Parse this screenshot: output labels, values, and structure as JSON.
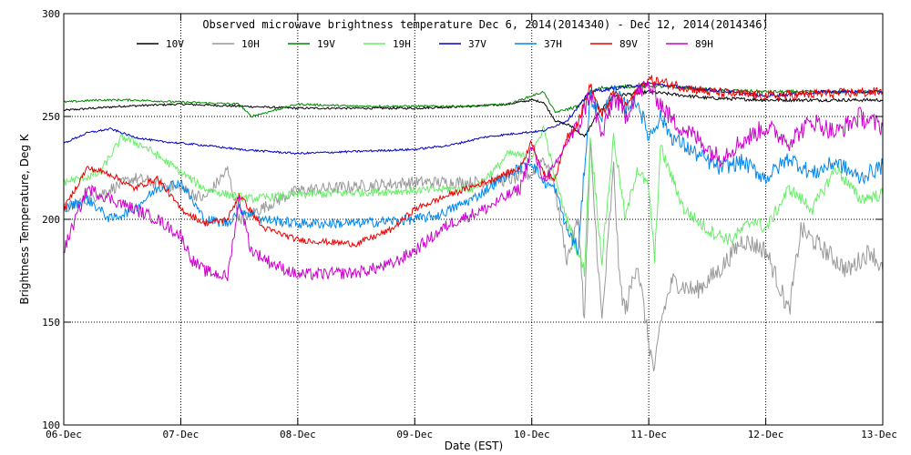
{
  "chart_data": {
    "type": "line",
    "title": "Observed microwave brightness temperature Dec  6, 2014(2014340) - Dec 12, 2014(2014346)",
    "xlabel": "Date (EST)",
    "ylabel": "Brightness Temperature, Deg K",
    "ylim": [
      100,
      300
    ],
    "xlim": [
      0,
      7
    ],
    "grid": true,
    "legend_position": "top",
    "x_ticks": [
      0,
      1,
      2,
      3,
      4,
      5,
      6,
      7
    ],
    "x_tick_labels": [
      "06-Dec",
      "07-Dec",
      "08-Dec",
      "09-Dec",
      "10-Dec",
      "11-Dec",
      "12-Dec",
      "13-Dec"
    ],
    "y_ticks": [
      100,
      150,
      200,
      250,
      300
    ],
    "y_tick_labels": [
      "100",
      "150",
      "200",
      "250",
      "300"
    ],
    "x_unit": "days since 06-Dec 00:00 EST",
    "series": [
      {
        "name": "10V",
        "color": "#000000",
        "x": [
          0,
          0.5,
          1,
          1.5,
          2,
          2.5,
          3,
          3.5,
          3.8,
          4.0,
          4.1,
          4.2,
          4.35,
          4.45,
          4.55,
          4.7,
          5.0,
          5.5,
          6,
          6.5,
          7
        ],
        "y": [
          253,
          255,
          256,
          255,
          254,
          254,
          254,
          255,
          256,
          258,
          257,
          248,
          245,
          240,
          250,
          260,
          262,
          259,
          258,
          258,
          258
        ]
      },
      {
        "name": "10H",
        "color": "#999999",
        "x": [
          0,
          0.3,
          0.6,
          1.0,
          1.2,
          1.4,
          1.5,
          2.0,
          2.5,
          3.0,
          3.5,
          3.8,
          4.0,
          4.1,
          4.2,
          4.3,
          4.4,
          4.45,
          4.5,
          4.6,
          4.7,
          4.75,
          4.8,
          4.9,
          5.0,
          5.05,
          5.1,
          5.2,
          5.4,
          5.6,
          5.8,
          6.0,
          6.1,
          6.2,
          6.3,
          6.5,
          6.7,
          6.9,
          7.0
        ],
        "y": [
          205,
          212,
          220,
          215,
          210,
          224,
          200,
          214,
          216,
          218,
          218,
          219,
          222,
          230,
          215,
          180,
          200,
          150,
          235,
          150,
          225,
          170,
          155,
          180,
          140,
          125,
          150,
          170,
          165,
          175,
          190,
          185,
          170,
          155,
          195,
          185,
          175,
          185,
          175
        ]
      },
      {
        "name": "19V",
        "color": "#008800",
        "x": [
          0,
          0.3,
          0.6,
          1.0,
          1.5,
          1.6,
          2.0,
          2.5,
          3.0,
          3.5,
          3.8,
          4.0,
          4.1,
          4.2,
          4.4,
          4.5,
          4.6,
          5.0,
          5.5,
          6.0,
          6.5,
          7.0
        ],
        "y": [
          257,
          258,
          258,
          257,
          256,
          250,
          256,
          255,
          255,
          255,
          256,
          260,
          262,
          252,
          255,
          262,
          264,
          265,
          263,
          262,
          262,
          262
        ]
      },
      {
        "name": "19H",
        "color": "#66ee66",
        "x": [
          0,
          0.3,
          0.5,
          0.7,
          1.0,
          1.2,
          1.4,
          1.6,
          2.0,
          2.5,
          3.0,
          3.5,
          3.7,
          3.8,
          4.0,
          4.1,
          4.2,
          4.3,
          4.45,
          4.5,
          4.6,
          4.7,
          4.8,
          4.9,
          5.0,
          5.05,
          5.1,
          5.3,
          5.5,
          5.7,
          5.9,
          6.0,
          6.2,
          6.4,
          6.6,
          6.8,
          7.0
        ],
        "y": [
          218,
          222,
          240,
          235,
          223,
          215,
          212,
          210,
          212,
          213,
          214,
          215,
          225,
          232,
          230,
          245,
          220,
          200,
          175,
          240,
          180,
          240,
          200,
          225,
          215,
          180,
          235,
          205,
          195,
          190,
          200,
          195,
          215,
          205,
          225,
          210,
          212
        ]
      },
      {
        "name": "37V",
        "color": "#0000cc",
        "x": [
          0,
          0.2,
          0.4,
          0.6,
          0.8,
          1.0,
          1.2,
          1.5,
          2.0,
          2.5,
          3.0,
          3.3,
          3.6,
          3.9,
          4.1,
          4.3,
          4.5,
          5.0,
          5.5,
          6.0,
          6.5,
          7.0
        ],
        "y": [
          237,
          242,
          244,
          240,
          238,
          237,
          236,
          234,
          232,
          233,
          234,
          236,
          240,
          242,
          243,
          248,
          262,
          266,
          263,
          260,
          262,
          262
        ]
      },
      {
        "name": "37H",
        "color": "#0088ee",
        "x": [
          0,
          0.2,
          0.4,
          0.6,
          0.8,
          1.0,
          1.2,
          1.4,
          1.5,
          1.7,
          2.0,
          2.5,
          3.0,
          3.2,
          3.5,
          3.8,
          4.0,
          4.1,
          4.2,
          4.3,
          4.4,
          4.45,
          4.5,
          4.6,
          4.7,
          4.8,
          4.9,
          5.0,
          5.1,
          5.2,
          5.4,
          5.6,
          5.8,
          6.0,
          6.2,
          6.4,
          6.6,
          6.8,
          7.0
        ],
        "y": [
          205,
          210,
          200,
          205,
          215,
          218,
          200,
          198,
          205,
          200,
          198,
          198,
          200,
          202,
          210,
          222,
          228,
          218,
          215,
          195,
          185,
          225,
          260,
          250,
          262,
          255,
          258,
          240,
          250,
          240,
          232,
          225,
          228,
          220,
          230,
          222,
          228,
          220,
          226
        ]
      },
      {
        "name": "89V",
        "color": "#ee0000",
        "x": [
          0,
          0.2,
          0.4,
          0.6,
          0.8,
          1.0,
          1.2,
          1.4,
          1.5,
          1.7,
          2.0,
          2.5,
          2.8,
          3.0,
          3.3,
          3.6,
          3.9,
          4.0,
          4.1,
          4.2,
          4.3,
          4.4,
          4.5,
          4.6,
          4.7,
          4.8,
          4.9,
          5.0,
          5.5,
          6.0,
          6.5,
          7.0
        ],
        "y": [
          205,
          225,
          222,
          215,
          220,
          205,
          198,
          200,
          212,
          196,
          190,
          188,
          195,
          205,
          212,
          218,
          225,
          238,
          222,
          220,
          240,
          248,
          265,
          250,
          262,
          255,
          262,
          268,
          262,
          260,
          261,
          262
        ]
      },
      {
        "name": "89H",
        "color": "#cc00cc",
        "x": [
          0,
          0.2,
          0.4,
          0.6,
          0.8,
          1.0,
          1.1,
          1.2,
          1.4,
          1.5,
          1.6,
          1.8,
          2.0,
          2.5,
          2.8,
          3.0,
          3.3,
          3.6,
          3.9,
          4.0,
          4.1,
          4.2,
          4.3,
          4.4,
          4.5,
          4.6,
          4.7,
          4.8,
          4.9,
          5.0,
          5.2,
          5.4,
          5.6,
          5.8,
          6.0,
          6.2,
          6.4,
          6.6,
          6.8,
          7.0
        ],
        "y": [
          185,
          215,
          210,
          205,
          200,
          192,
          180,
          175,
          172,
          210,
          185,
          178,
          173,
          174,
          178,
          185,
          198,
          205,
          215,
          235,
          220,
          225,
          238,
          245,
          262,
          240,
          260,
          250,
          262,
          265,
          248,
          240,
          230,
          238,
          245,
          238,
          248,
          242,
          250,
          245
        ]
      }
    ]
  }
}
